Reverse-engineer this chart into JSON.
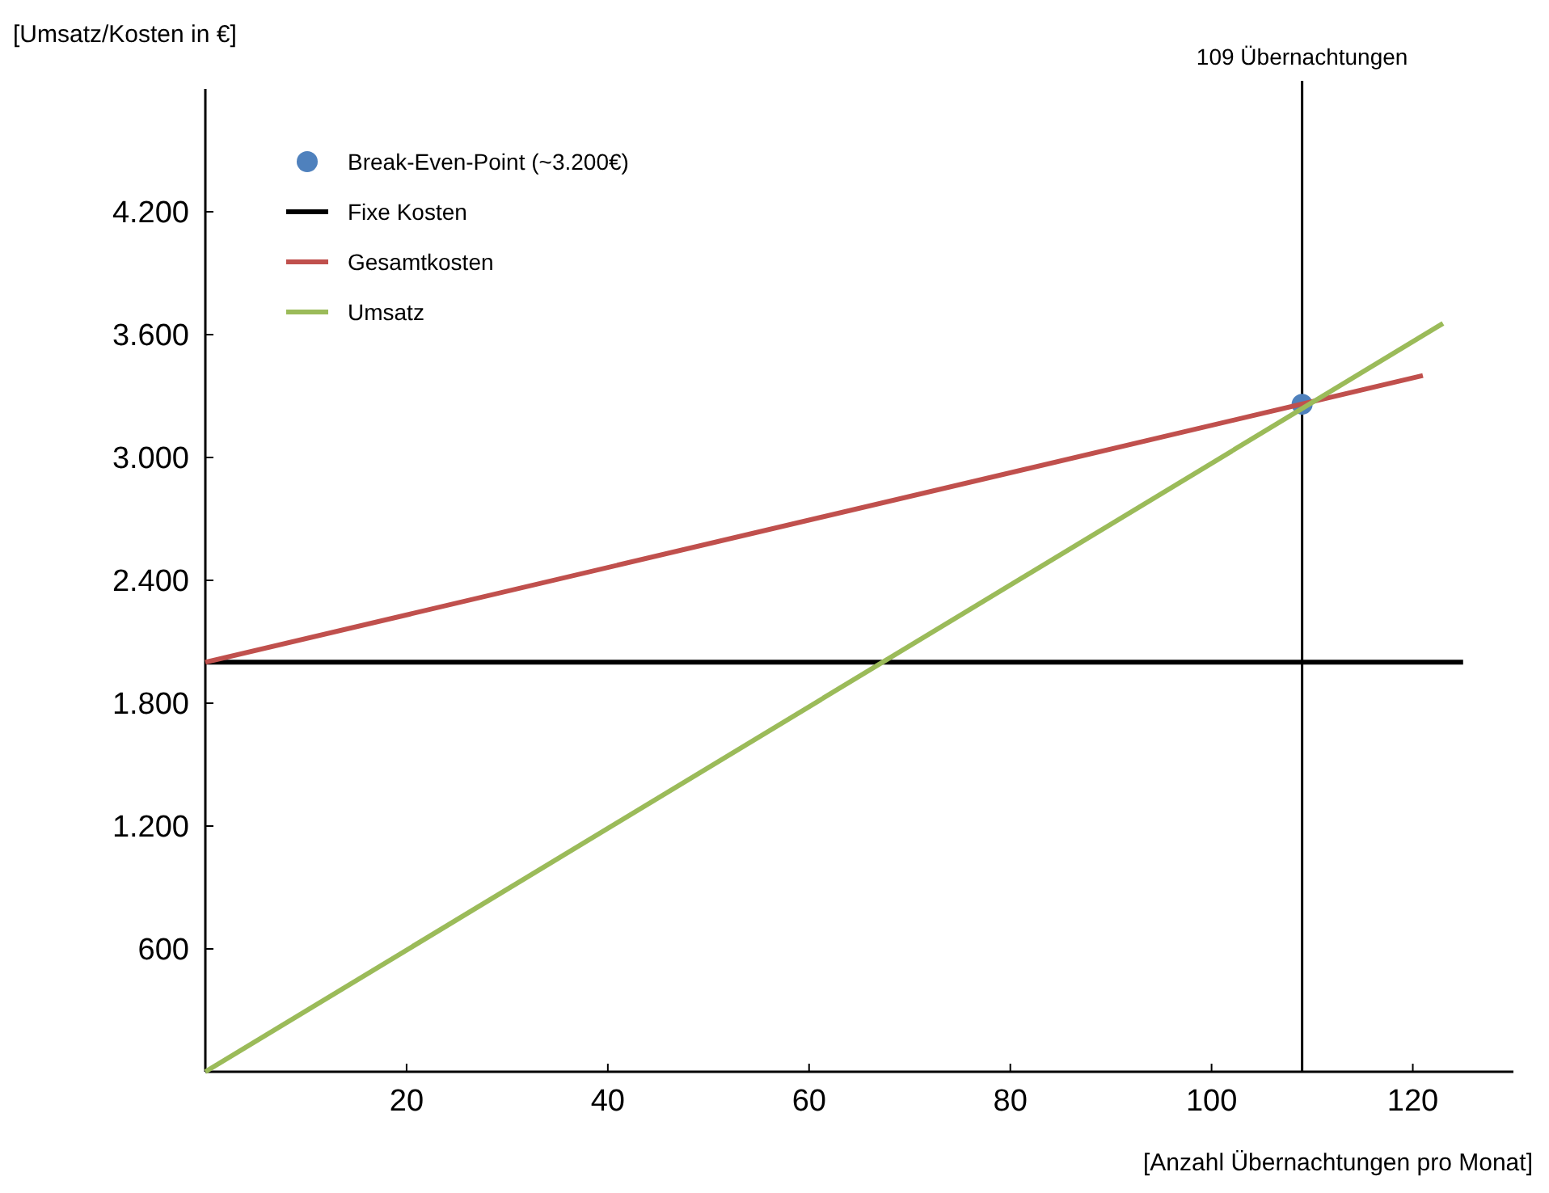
{
  "chart_data": {
    "type": "line",
    "xlabel": "[Anzahl Übernachtungen pro Monat]",
    "ylabel": "[Umsatz/Kosten in €]",
    "xlim": [
      0,
      130
    ],
    "xticks": [
      20,
      40,
      60,
      80,
      100,
      120
    ],
    "ylim": [
      0,
      4800
    ],
    "yticks": [
      {
        "value": 600,
        "label": "600"
      },
      {
        "value": 1200,
        "label": "1.200"
      },
      {
        "value": 1800,
        "label": "1.800"
      },
      {
        "value": 2400,
        "label": "2.400"
      },
      {
        "value": 3000,
        "label": "3.000"
      },
      {
        "value": 3600,
        "label": "3.600"
      },
      {
        "value": 4200,
        "label": "4.200"
      }
    ],
    "grid": false,
    "legend": "top left",
    "line_style": "solid",
    "marker": "none",
    "ref_lines": [
      {
        "axis": "x",
        "value": 109,
        "label": "109 Übernachtungen",
        "color": "#000000"
      }
    ],
    "series": [
      {
        "name": "Break-Even-Point (~3.200€)",
        "type": "scatter",
        "marker": "circle",
        "color": "#4f81bd",
        "x": [
          109
        ],
        "values": [
          3260
        ]
      },
      {
        "name": "Fixe Kosten",
        "color": "#000000",
        "x": [
          0,
          125
        ],
        "values": [
          2000,
          2000
        ]
      },
      {
        "name": "Gesamtkosten",
        "color": "#c0504d",
        "x": [
          0,
          121
        ],
        "values": [
          2000,
          3400
        ]
      },
      {
        "name": "Umsatz",
        "color": "#9bbb59",
        "x": [
          0,
          123
        ],
        "values": [
          0,
          3655
        ]
      }
    ]
  }
}
